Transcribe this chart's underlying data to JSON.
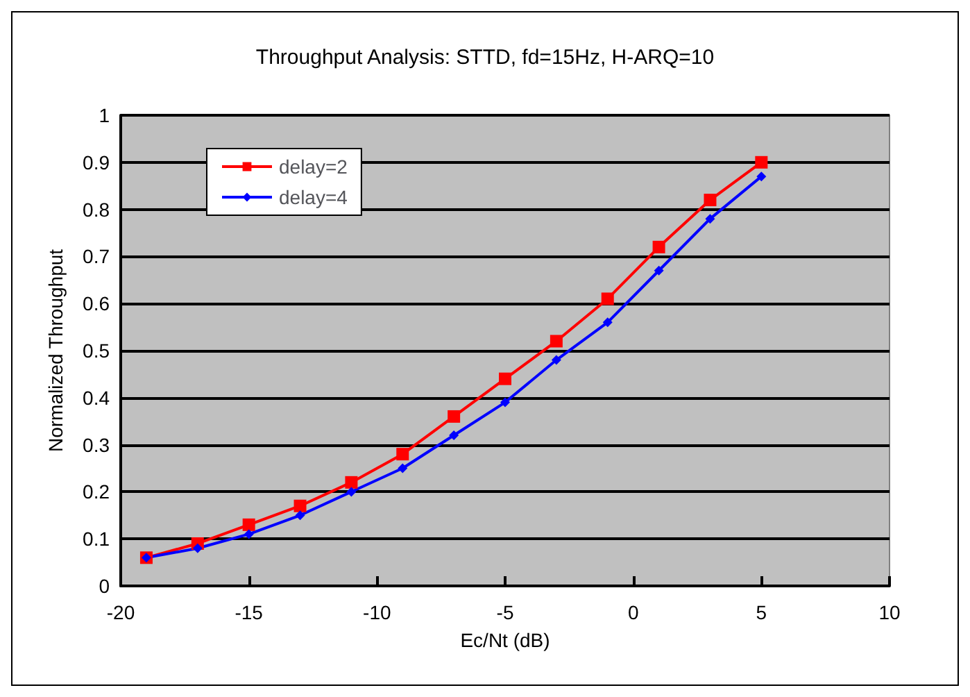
{
  "chart_data": {
    "type": "line",
    "title": "Throughput Analysis: STTD, fd=15Hz, H-ARQ=10",
    "xlabel": "Ec/Nt (dB)",
    "ylabel": "Normalized Throughput",
    "x": [
      -19,
      -17,
      -15,
      -13,
      -11,
      -9,
      -7,
      -5,
      -3,
      -1,
      1,
      3,
      5
    ],
    "series": [
      {
        "name": "delay=2",
        "color": "#ff0000",
        "marker": "square",
        "values": [
          0.06,
          0.09,
          0.13,
          0.17,
          0.22,
          0.28,
          0.36,
          0.44,
          0.52,
          0.61,
          0.72,
          0.82,
          0.9
        ]
      },
      {
        "name": "delay=4",
        "color": "#0000ff",
        "marker": "diamond",
        "values": [
          0.06,
          0.08,
          0.11,
          0.15,
          0.2,
          0.25,
          0.32,
          0.39,
          0.48,
          0.56,
          0.67,
          0.78,
          0.87
        ]
      }
    ],
    "xlim": [
      -20,
      10
    ],
    "xticks": [
      -20,
      -15,
      -10,
      -5,
      0,
      5,
      10
    ],
    "ylim": [
      0,
      1
    ],
    "yticks": [
      0,
      0.1,
      0.2,
      0.3,
      0.4,
      0.5,
      0.6,
      0.7,
      0.8,
      0.9,
      1
    ],
    "grid": "y",
    "legend": "top left"
  }
}
